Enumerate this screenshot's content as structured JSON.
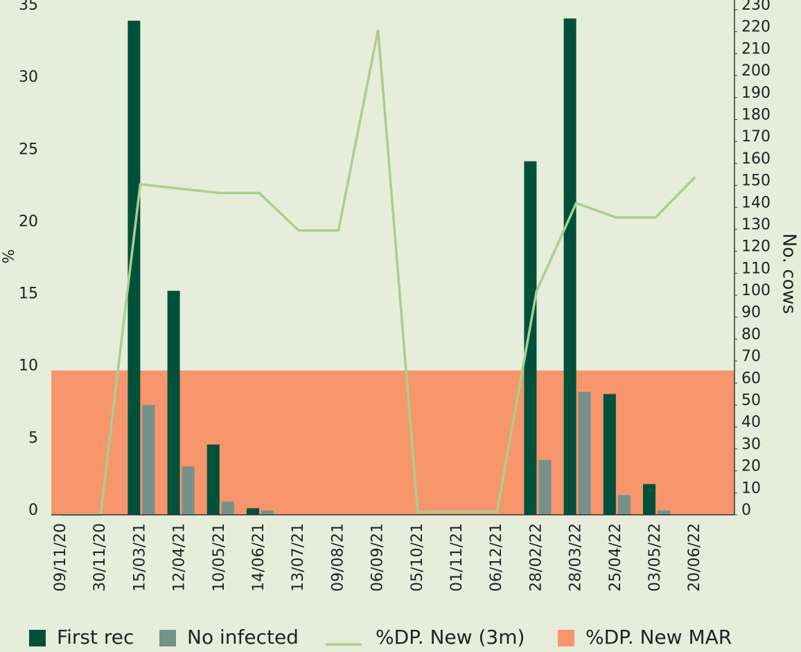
{
  "chart_data": {
    "type": "bar",
    "categories": [
      "09/11/20",
      "30/11/20",
      "15/03/21",
      "12/04/21",
      "10/05/21",
      "14/06/21",
      "13/07/21",
      "09/08/21",
      "06/09/21",
      "05/10/21",
      "01/11/21",
      "06/12/21",
      "28/02/22",
      "28/03/22",
      "25/04/22",
      "03/05/22",
      "20/06/22"
    ],
    "ylabel": "%",
    "y2label": "No. cows",
    "ylim": [
      0,
      35
    ],
    "yticks": [
      0,
      5,
      10,
      15,
      20,
      25,
      30,
      35
    ],
    "y2lim": [
      0,
      230
    ],
    "y2ticks": [
      0,
      10,
      20,
      30,
      40,
      50,
      60,
      70,
      80,
      90,
      100,
      110,
      120,
      130,
      140,
      150,
      160,
      170,
      180,
      190,
      200,
      210,
      220,
      230
    ],
    "legend": "bottom",
    "series": [
      {
        "name": "First rec",
        "type": "bar",
        "axis": "y2",
        "color": "#00513a",
        "values": [
          null,
          null,
          225,
          102,
          32,
          3,
          null,
          null,
          null,
          null,
          null,
          null,
          161,
          226,
          55,
          14,
          null
        ]
      },
      {
        "name": "No infected",
        "type": "bar",
        "axis": "y2",
        "color": "#75918a",
        "values": [
          null,
          null,
          50,
          22,
          6,
          2,
          null,
          null,
          null,
          null,
          null,
          null,
          25,
          56,
          9,
          2,
          null
        ]
      },
      {
        "name": "%DP. New (3m)",
        "type": "line",
        "color": "#a9cf8d",
        "values": [
          0,
          0,
          22.9,
          22.6,
          22.3,
          22.3,
          19.7,
          19.7,
          33.6,
          0.2,
          0.2,
          0.2,
          15.5,
          21.6,
          20.6,
          20.6,
          23.4
        ]
      },
      {
        "name": "%DP. New MAR",
        "type": "area",
        "color": "#f7956d",
        "values": [
          10,
          10,
          10,
          10,
          10,
          10,
          10,
          10,
          10,
          10,
          10,
          10,
          10,
          10,
          10,
          10,
          10
        ]
      }
    ]
  }
}
